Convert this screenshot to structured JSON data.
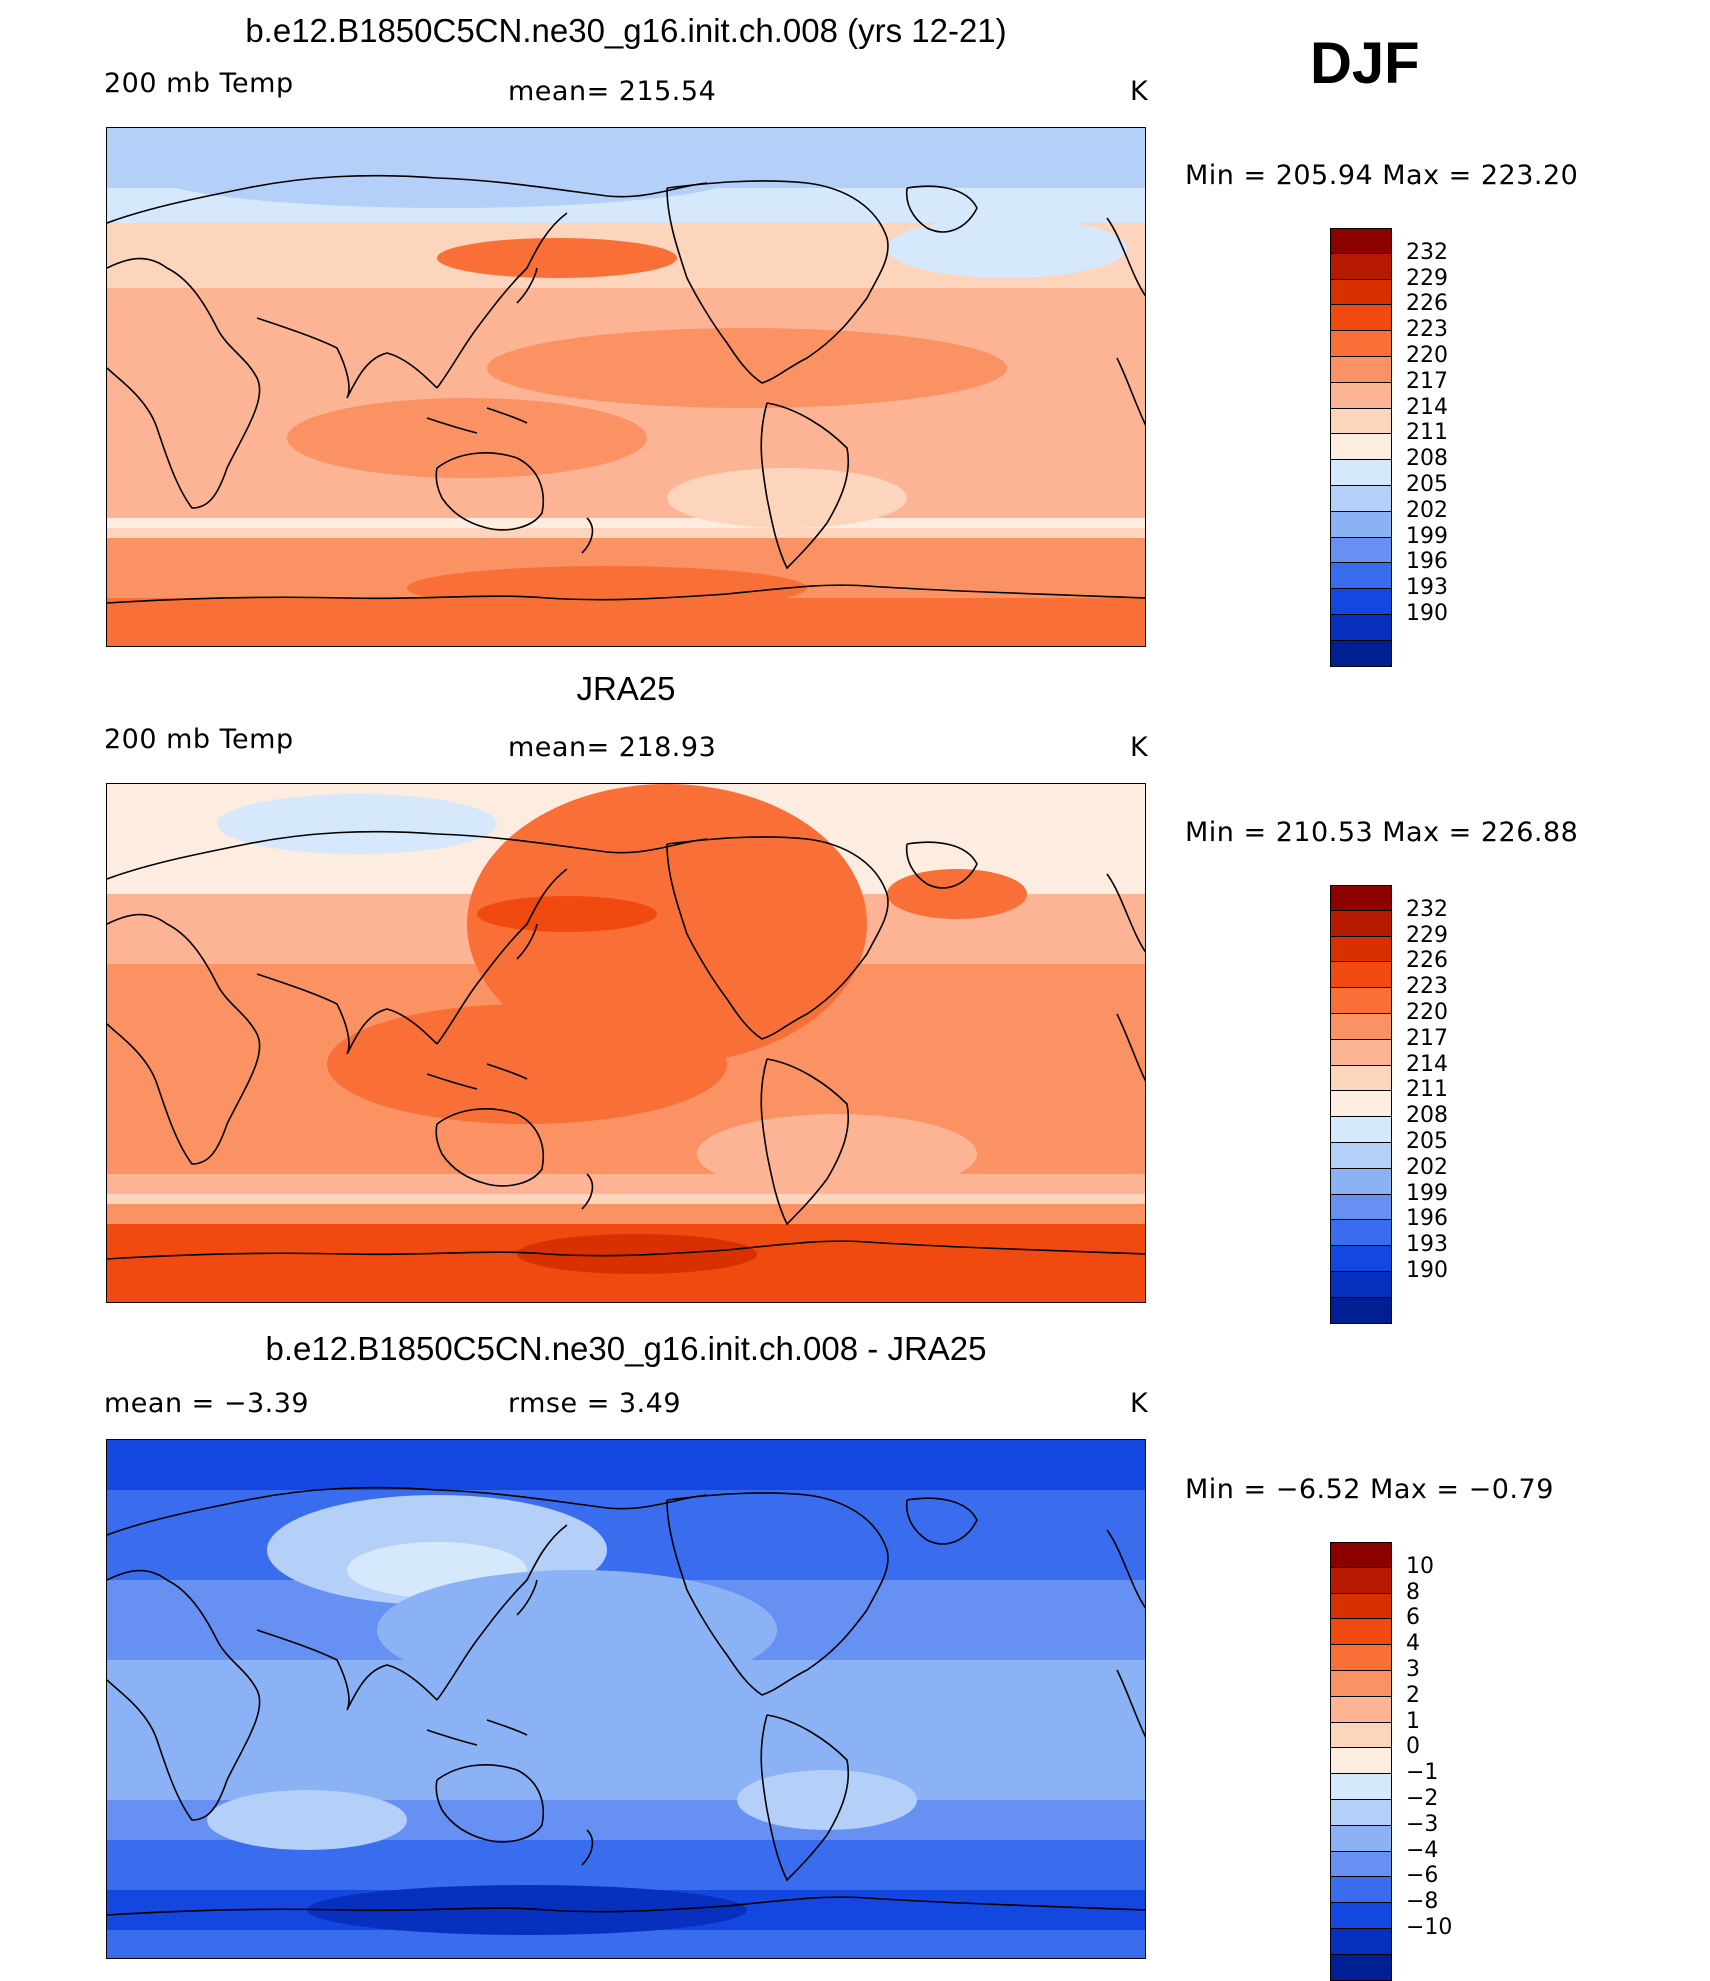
{
  "season": "DJF",
  "panels": [
    {
      "title": "b.e12.B1850C5CN.ne30_g16.init.ch.008 (yrs 12-21)",
      "left_label": "200 mb Temp",
      "center_label": "mean=  215.54",
      "units": "K",
      "minmax": "Min  =  205.94  Max  =  223.20",
      "scheme": "model"
    },
    {
      "title": "JRA25",
      "left_label": "200 mb Temp",
      "center_label": "mean=  218.93",
      "units": "K",
      "minmax": "Min  =  210.53  Max  =  226.88",
      "scheme": "obs"
    },
    {
      "title": "b.e12.B1850C5CN.ne30_g16.init.ch.008 - JRA25",
      "left_label": "mean  =     −3.39",
      "center_label": "rmse  =     3.49",
      "units": "K",
      "minmax": "Min  =    −6.52  Max  =    −0.79",
      "scheme": "diff"
    }
  ],
  "colorbar_abs": {
    "labels": [
      "232",
      "229",
      "226",
      "223",
      "220",
      "217",
      "214",
      "211",
      "208",
      "205",
      "202",
      "199",
      "196",
      "193",
      "190"
    ],
    "colors": [
      "#8c0000",
      "#b51a00",
      "#d93000",
      "#f04a10",
      "#f87038",
      "#fa9264",
      "#fcb494",
      "#fdd4bc",
      "#fdece0",
      "#d6e8fb",
      "#b4d0f9",
      "#8cb2f6",
      "#6690f2",
      "#3a6cee",
      "#1446e0",
      "#0830bf",
      "#001f93"
    ]
  },
  "colorbar_diff": {
    "labels": [
      "10",
      "8",
      "6",
      "4",
      "3",
      "2",
      "1",
      "0",
      "−1",
      "−2",
      "−3",
      "−4",
      "−6",
      "−8",
      "−10"
    ],
    "colors": [
      "#8c0000",
      "#b51a00",
      "#d93000",
      "#f04a10",
      "#f87038",
      "#fa9264",
      "#fcb494",
      "#fdd4bc",
      "#fdece0",
      "#d6e8fb",
      "#b4d0f9",
      "#8cb2f6",
      "#6690f2",
      "#3a6cee",
      "#1446e0",
      "#0830bf",
      "#001f93"
    ]
  }
}
